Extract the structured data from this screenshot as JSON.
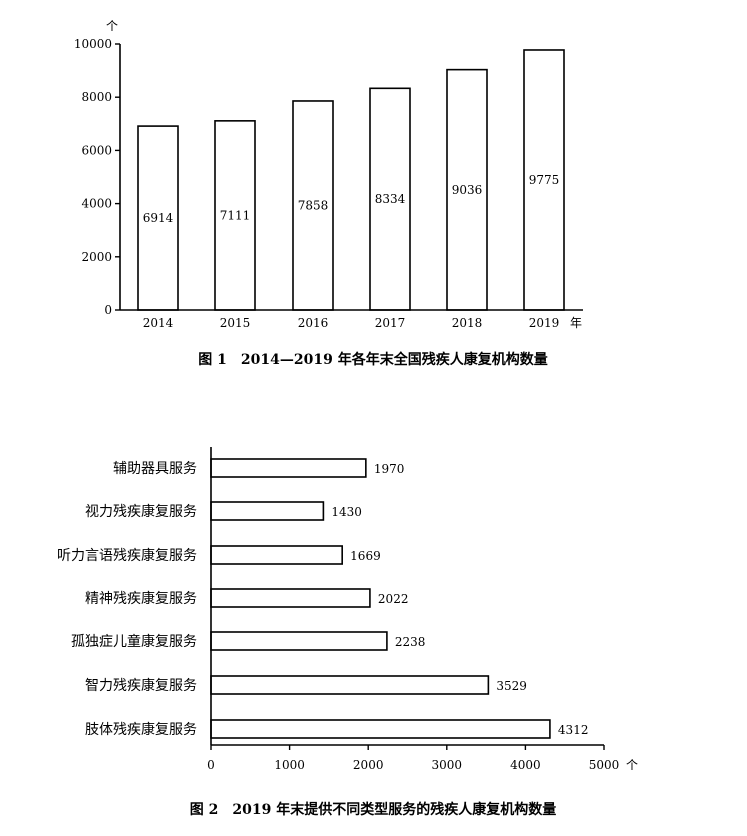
{
  "chart_data": [
    {
      "type": "bar",
      "title": "图 1　2014—2019 年各年末全国残疾人康复机构数量",
      "categories": [
        "2014",
        "2015",
        "2016",
        "2017",
        "2018",
        "2019"
      ],
      "values": [
        6914,
        7111,
        7858,
        8334,
        9036,
        9775
      ],
      "xunit": "年",
      "yunit": "个",
      "ylim": [
        0,
        10000
      ],
      "yticks": [
        0,
        2000,
        4000,
        6000,
        8000,
        10000
      ],
      "grid": false
    },
    {
      "type": "bar",
      "orientation": "horizontal",
      "title": "图 2　2019 年末提供不同类型服务的残疾人康复机构数量",
      "categories": [
        "辅助器具服务",
        "视力残疾康复服务",
        "听力言语残疾康复服务",
        "精神残疾康复服务",
        "孤独症儿童康复服务",
        "智力残疾康复服务",
        "肢体残疾康复服务"
      ],
      "values": [
        1970,
        1430,
        1669,
        2022,
        2238,
        3529,
        4312
      ],
      "xunit": "个",
      "xlim": [
        0,
        5000
      ],
      "xticks": [
        0,
        1000,
        2000,
        3000,
        4000,
        5000
      ],
      "grid": false
    }
  ]
}
